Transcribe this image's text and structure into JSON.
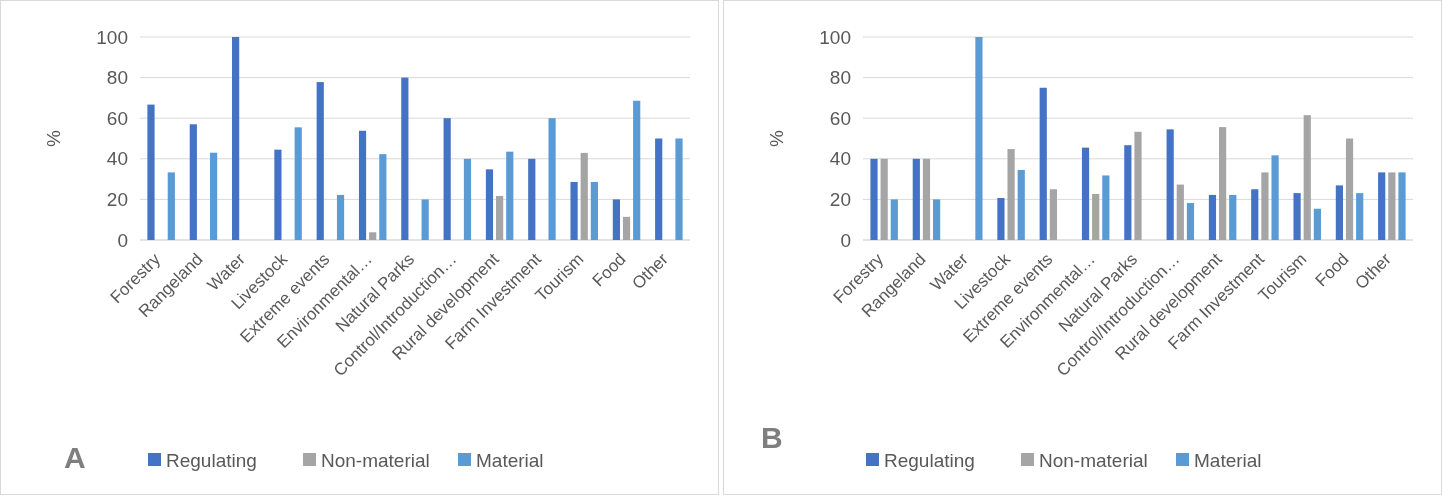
{
  "chart_data": [
    {
      "type": "bar",
      "ylabel": "%",
      "categories": [
        "Forestry",
        "Rangeland",
        "Water",
        "Livestock",
        "Extreme events",
        "Environmental…",
        "Natural Parks",
        "Control/Introduction…",
        "Rural development",
        "Farm Investment",
        "Tourism",
        "Food",
        "Other"
      ],
      "series": [
        {
          "name": "Regulating",
          "color": "#4472c4",
          "values": [
            66.7,
            57,
            100,
            44.5,
            77.8,
            53.8,
            80,
            60,
            34.8,
            40,
            28.6,
            20,
            50
          ]
        },
        {
          "name": "Non-material",
          "color": "#a5a5a5",
          "values": [
            0,
            0,
            0,
            0,
            0,
            3.8,
            0,
            0,
            21.7,
            0,
            42.9,
            11.4,
            0
          ]
        },
        {
          "name": "Material",
          "color": "#5b9bd5",
          "values": [
            33.3,
            43,
            0,
            55.5,
            22.2,
            42.3,
            20,
            40,
            43.5,
            60,
            28.6,
            68.6,
            50
          ]
        }
      ],
      "ylim": [
        0,
        100
      ],
      "yticks": [
        0,
        20,
        40,
        60,
        80,
        100
      ],
      "grid": "y",
      "legend": "bottom",
      "annotations": [
        "A"
      ]
    },
    {
      "type": "bar",
      "ylabel": "%",
      "categories": [
        "Forestry",
        "Rangeland",
        "Water",
        "Livestock",
        "Extreme events",
        "Environmental…",
        "Natural Parks",
        "Control/Introduction…",
        "Rural development",
        "Farm Investment",
        "Tourism",
        "Food",
        "Other"
      ],
      "series": [
        {
          "name": "Regulating",
          "color": "#4472c4",
          "values": [
            40,
            40,
            0,
            20.7,
            75,
            45.5,
            46.7,
            54.5,
            22.2,
            25,
            23.1,
            26.9,
            33.3
          ]
        },
        {
          "name": "Non-material",
          "color": "#a5a5a5",
          "values": [
            40,
            40,
            0,
            44.8,
            25,
            22.7,
            53.3,
            27.3,
            55.6,
            33.3,
            61.5,
            50,
            33.3
          ]
        },
        {
          "name": "Material",
          "color": "#5b9bd5",
          "values": [
            20,
            20,
            100,
            34.5,
            0,
            31.8,
            0,
            18.2,
            22.2,
            41.7,
            15.4,
            23.1,
            33.3
          ]
        }
      ],
      "ylim": [
        0,
        100
      ],
      "yticks": [
        0,
        20,
        40,
        60,
        80,
        100
      ],
      "grid": "y",
      "legend": "bottom",
      "annotations": [
        "B"
      ]
    }
  ]
}
